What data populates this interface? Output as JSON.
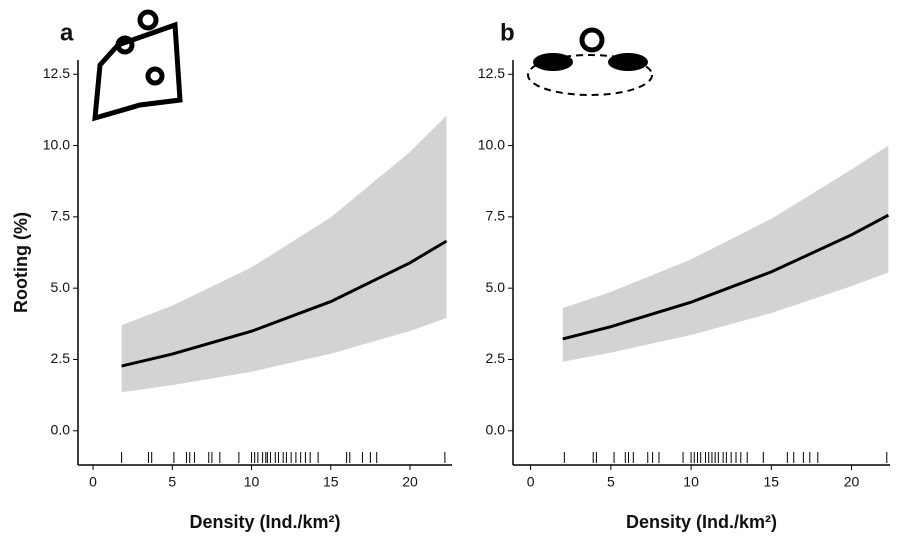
{
  "chart_data": [
    {
      "type": "line",
      "panel_label": "a",
      "ylabel": "Rooting (%)",
      "xlabel": "Density (Ind./km²)",
      "x": [
        1.8,
        5,
        10,
        15,
        20,
        22.3
      ],
      "values": [
        2.27,
        2.69,
        3.49,
        4.53,
        5.89,
        6.65
      ],
      "band_upper": [
        3.7,
        4.39,
        5.73,
        7.48,
        9.78,
        11.05
      ],
      "band_lower": [
        1.35,
        1.6,
        2.07,
        2.7,
        3.5,
        3.95
      ],
      "color": "#000000",
      "band_color": "#d3d3d3",
      "rug": [
        1.8,
        3.5,
        3.7,
        5.1,
        5.9,
        6.1,
        6.4,
        7.3,
        7.5,
        8.0,
        9.2,
        10.0,
        10.2,
        10.4,
        10.7,
        10.9,
        11.0,
        11.2,
        11.5,
        11.7,
        12.0,
        12.2,
        12.5,
        12.8,
        13.1,
        13.4,
        13.7,
        14.2,
        16.0,
        16.2,
        17.0,
        17.5,
        17.9,
        22.2
      ],
      "xlim": [
        -0.95,
        22.65
      ],
      "ylim": [
        -1.2,
        13
      ],
      "xticks": [
        0,
        5,
        10,
        15,
        20
      ],
      "yticks": [
        {
          "value": 0,
          "label": "0.0"
        },
        2.5,
        {
          "value": 5,
          "label": "5.0"
        },
        7.5,
        {
          "value": 10,
          "label": "10.0"
        },
        12.5
      ]
    },
    {
      "type": "line",
      "panel_label": "b",
      "xlabel": "Density (Ind./km²)",
      "x": [
        2,
        5,
        10,
        15,
        20,
        22.3
      ],
      "values": [
        3.22,
        3.65,
        4.51,
        5.57,
        6.87,
        7.56
      ],
      "band_upper": [
        4.3,
        4.87,
        6.01,
        7.43,
        9.16,
        10.0
      ],
      "band_lower": [
        2.42,
        2.74,
        3.36,
        4.13,
        5.07,
        5.55
      ],
      "color": "#000000",
      "band_color": "#d3d3d3",
      "rug": [
        2.1,
        3.9,
        4.1,
        5.2,
        5.9,
        6.1,
        6.4,
        7.3,
        7.6,
        8.0,
        9.5,
        10.0,
        10.2,
        10.4,
        10.6,
        10.9,
        11.1,
        11.3,
        11.5,
        11.7,
        12.0,
        12.2,
        12.5,
        12.8,
        13.1,
        13.5,
        14.5,
        16.0,
        16.4,
        17.0,
        17.4,
        17.9,
        22.2
      ],
      "xlim": [
        -1.1,
        22.4
      ],
      "ylim": [
        -1.2,
        13
      ],
      "xticks": [
        0,
        5,
        10,
        15,
        20
      ],
      "yticks": [
        {
          "value": 0,
          "label": "0.0"
        },
        2.5,
        {
          "value": 5,
          "label": "5.0"
        },
        7.5,
        {
          "value": 10,
          "label": "10.0"
        },
        12.5
      ]
    }
  ]
}
